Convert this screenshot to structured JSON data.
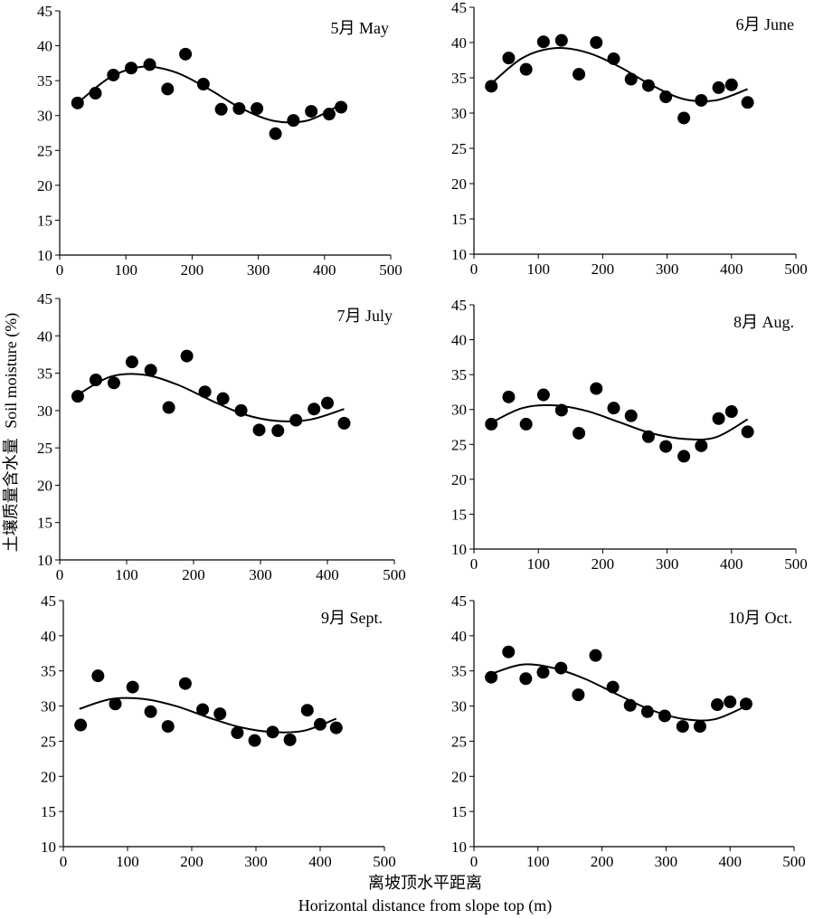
{
  "chart_data": [
    {
      "type": "scatter",
      "title": "5月 May",
      "xlim": [
        0,
        500
      ],
      "ylim": [
        10,
        45
      ],
      "x_ticks": [
        0,
        100,
        200,
        300,
        400,
        500
      ],
      "y_ticks": [
        10,
        15,
        20,
        25,
        30,
        35,
        40,
        45
      ],
      "grid": false,
      "points": {
        "x": [
          27,
          54,
          81,
          108,
          136,
          163,
          190,
          217,
          244,
          271,
          298,
          326,
          353,
          380,
          407,
          425
        ],
        "y": [
          31.8,
          33.2,
          35.8,
          36.8,
          37.3,
          33.8,
          38.8,
          34.5,
          30.9,
          31.0,
          31.0,
          27.4,
          29.3,
          30.6,
          30.2,
          31.2
        ]
      },
      "trend": {
        "x": [
          25,
          75,
          125,
          175,
          225,
          275,
          325,
          375,
          425
        ],
        "y": [
          31.6,
          35.4,
          37.0,
          36.2,
          33.8,
          31.0,
          29.2,
          29.3,
          31.6
        ]
      }
    },
    {
      "type": "scatter",
      "title": "6月 June",
      "xlim": [
        0,
        500
      ],
      "ylim": [
        10,
        45
      ],
      "x_ticks": [
        0,
        100,
        200,
        300,
        400,
        500
      ],
      "y_ticks": [
        10,
        15,
        20,
        25,
        30,
        35,
        40,
        45
      ],
      "grid": false,
      "points": {
        "x": [
          27,
          54,
          81,
          108,
          136,
          163,
          190,
          217,
          244,
          271,
          298,
          326,
          353,
          380,
          400,
          425
        ],
        "y": [
          33.8,
          37.8,
          36.2,
          40.1,
          40.3,
          35.5,
          40.0,
          37.7,
          34.8,
          33.9,
          32.3,
          29.3,
          31.8,
          33.6,
          34.0,
          31.5
        ]
      },
      "trend": {
        "x": [
          25,
          75,
          125,
          175,
          225,
          275,
          325,
          375,
          425
        ],
        "y": [
          34.0,
          37.8,
          39.2,
          38.6,
          36.6,
          34.0,
          32.0,
          31.8,
          33.4
        ]
      }
    },
    {
      "type": "scatter",
      "title": "7月 July",
      "xlim": [
        0,
        500
      ],
      "ylim": [
        10,
        45
      ],
      "x_ticks": [
        0,
        100,
        200,
        300,
        400,
        500
      ],
      "y_ticks": [
        10,
        15,
        20,
        25,
        30,
        35,
        40,
        45
      ],
      "grid": false,
      "points": {
        "x": [
          27,
          54,
          81,
          108,
          136,
          163,
          190,
          217,
          244,
          271,
          298,
          326,
          353,
          380,
          400,
          425
        ],
        "y": [
          31.9,
          34.1,
          33.7,
          36.5,
          35.4,
          30.4,
          37.3,
          32.5,
          31.6,
          30.0,
          27.4,
          27.3,
          28.7,
          30.2,
          31.0,
          28.3
        ]
      },
      "trend": {
        "x": [
          25,
          75,
          125,
          175,
          225,
          275,
          325,
          375,
          425
        ],
        "y": [
          32.0,
          34.5,
          34.8,
          33.5,
          31.4,
          29.5,
          28.6,
          28.8,
          30.2
        ]
      }
    },
    {
      "type": "scatter",
      "title": "8月 Aug.",
      "xlim": [
        0,
        500
      ],
      "ylim": [
        10,
        45
      ],
      "x_ticks": [
        0,
        100,
        200,
        300,
        400,
        500
      ],
      "y_ticks": [
        10,
        15,
        20,
        25,
        30,
        35,
        40,
        45
      ],
      "grid": false,
      "points": {
        "x": [
          27,
          54,
          81,
          108,
          136,
          163,
          190,
          217,
          244,
          271,
          298,
          326,
          353,
          380,
          400,
          425
        ],
        "y": [
          27.9,
          31.8,
          27.9,
          32.1,
          29.9,
          26.6,
          33.0,
          30.2,
          29.1,
          26.1,
          24.7,
          23.3,
          24.8,
          28.7,
          29.7,
          26.8
        ]
      },
      "trend": {
        "x": [
          25,
          75,
          125,
          175,
          225,
          275,
          325,
          375,
          425
        ],
        "y": [
          28.0,
          30.2,
          30.6,
          29.8,
          28.2,
          26.6,
          25.8,
          26.0,
          28.6
        ]
      }
    },
    {
      "type": "scatter",
      "title": "9月 Sept.",
      "xlim": [
        0,
        500
      ],
      "ylim": [
        10,
        45
      ],
      "x_ticks": [
        0,
        100,
        200,
        300,
        400,
        500
      ],
      "y_ticks": [
        10,
        15,
        20,
        25,
        30,
        35,
        40,
        45
      ],
      "grid": false,
      "points": {
        "x": [
          27,
          54,
          81,
          108,
          136,
          163,
          190,
          217,
          244,
          271,
          298,
          326,
          353,
          380,
          400,
          425
        ],
        "y": [
          27.3,
          34.3,
          30.3,
          32.7,
          29.2,
          27.1,
          33.2,
          29.5,
          28.9,
          26.2,
          25.1,
          26.3,
          25.2,
          29.4,
          27.4,
          26.9
        ]
      },
      "trend": {
        "x": [
          25,
          75,
          125,
          175,
          225,
          275,
          325,
          375,
          425
        ],
        "y": [
          29.6,
          31.0,
          31.0,
          30.0,
          28.4,
          27.0,
          26.3,
          26.5,
          28.2
        ]
      }
    },
    {
      "type": "scatter",
      "title": "10月 Oct.",
      "xlim": [
        0,
        500
      ],
      "ylim": [
        10,
        45
      ],
      "x_ticks": [
        0,
        100,
        200,
        300,
        400,
        500
      ],
      "y_ticks": [
        10,
        15,
        20,
        25,
        30,
        35,
        40,
        45
      ],
      "grid": false,
      "points": {
        "x": [
          27,
          54,
          81,
          108,
          136,
          163,
          190,
          217,
          244,
          271,
          298,
          326,
          353,
          380,
          400,
          425
        ],
        "y": [
          34.1,
          37.7,
          33.9,
          34.8,
          35.4,
          31.6,
          37.2,
          32.7,
          30.1,
          29.2,
          28.6,
          27.1,
          27.1,
          30.2,
          30.6,
          30.3
        ]
      },
      "trend": {
        "x": [
          25,
          75,
          125,
          175,
          225,
          275,
          325,
          375,
          425
        ],
        "y": [
          34.5,
          35.9,
          35.4,
          33.8,
          31.6,
          29.5,
          28.2,
          28.1,
          30.0
        ]
      }
    }
  ],
  "y_axis_label_cn": "土壤质量含水量",
  "y_axis_label_en": "Soil moisture (%)",
  "x_axis_label_cn": "离坡顶水平距离",
  "x_axis_label_en": "Horizontal distance from slope top (m)",
  "colors": {
    "marker": "#000000",
    "line": "#000000",
    "axis": "#000000",
    "background": "#ffffff"
  }
}
